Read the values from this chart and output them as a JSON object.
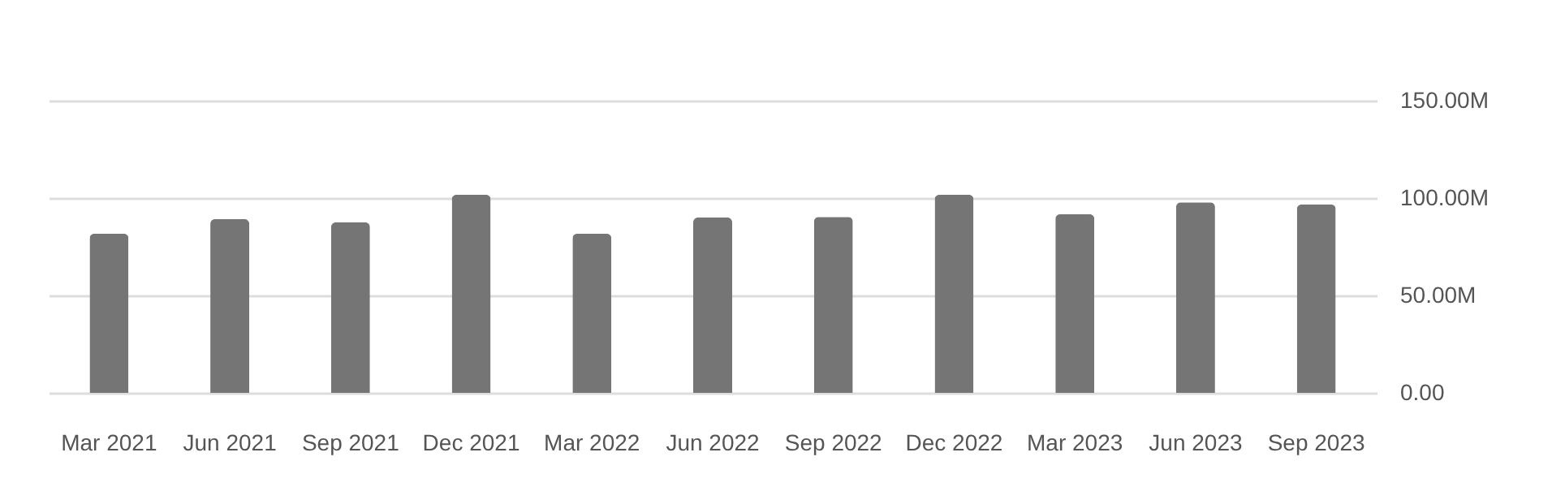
{
  "chart_data": {
    "type": "bar",
    "categories": [
      "Mar 2021",
      "Jun 2021",
      "Sep 2021",
      "Dec 2021",
      "Mar 2022",
      "Jun 2022",
      "Sep 2022",
      "Dec 2022",
      "Mar 2023",
      "Jun 2023",
      "Sep 2023"
    ],
    "values": [
      81700000,
      89200000,
      87500000,
      101700000,
      81700000,
      90000000,
      90300000,
      101700000,
      91700000,
      97800000,
      96700000
    ],
    "color": "#757575",
    "ylim": [
      0,
      150000000
    ],
    "yticks": [
      {
        "value": 0,
        "label": "0.00"
      },
      {
        "value": 50000000,
        "label": "50.00M"
      },
      {
        "value": 100000000,
        "label": "100.00M"
      },
      {
        "value": 150000000,
        "label": "150.00M"
      }
    ],
    "grid": "y"
  }
}
